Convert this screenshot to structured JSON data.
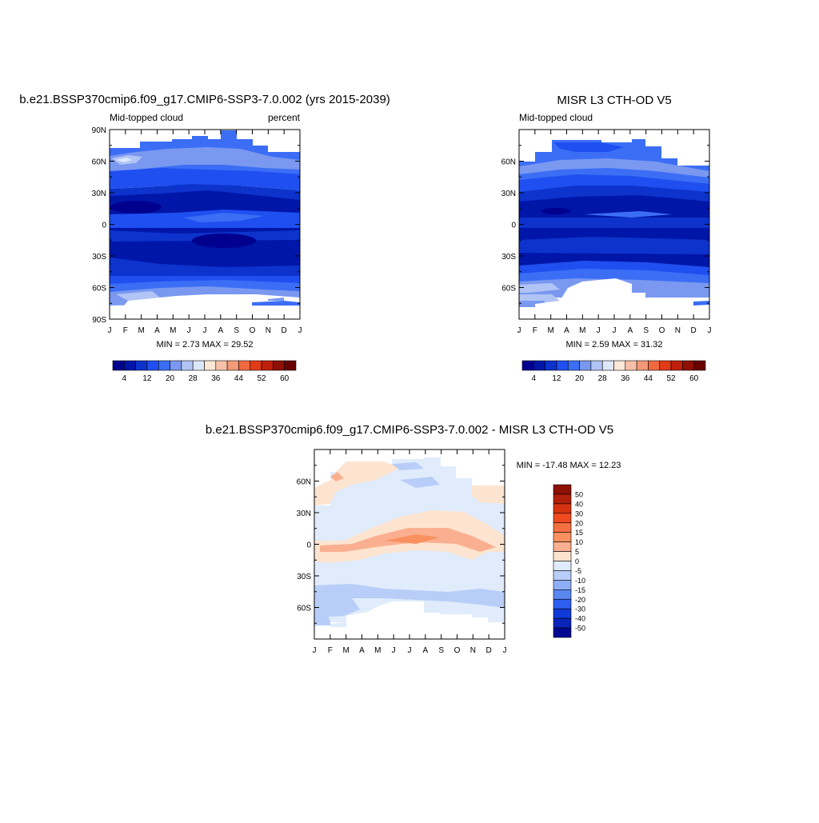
{
  "chart_data": [
    {
      "type": "heatmap",
      "title": "b.e21.BSSP370cmip6.f09_g17.CMIP6-SSP3-7.0.002 (yrs 2015-2039)",
      "subtitle_left": "Mid-topped cloud",
      "subtitle_right": "percent",
      "stats": "MIN =   2.73 MAX =  29.52",
      "x_ticks": [
        "J",
        "F",
        "M",
        "A",
        "M",
        "J",
        "J",
        "A",
        "S",
        "O",
        "N",
        "D",
        "J"
      ],
      "y_ticks": [
        "90N",
        "60N",
        "30N",
        "0",
        "30S",
        "60S",
        "90S"
      ],
      "y_tick_values": [
        90,
        60,
        30,
        0,
        -30,
        -60,
        -90
      ],
      "ylim": [
        -90,
        90
      ],
      "colorbar": {
        "orientation": "horizontal",
        "colors": [
          "#00008f",
          "#0016a8",
          "#0d33cc",
          "#1f4ff0",
          "#3b6ef5",
          "#7a98f0",
          "#b0c4f5",
          "#dce8fa",
          "#fde7d6",
          "#f8c0a8",
          "#f49a78",
          "#f06a40",
          "#e33a18",
          "#c01f0c",
          "#8f1005",
          "#6a0000"
        ],
        "tick_labels": [
          "4",
          "12",
          "20",
          "28",
          "36",
          "44",
          "52",
          "60"
        ]
      },
      "grid": false
    },
    {
      "type": "heatmap",
      "title": "MISR L3 CTH-OD V5",
      "subtitle_left": "Mid-topped cloud",
      "stats": "MIN =   2.59 MAX =  31.32",
      "x_ticks": [
        "J",
        "F",
        "M",
        "A",
        "M",
        "J",
        "J",
        "A",
        "S",
        "O",
        "N",
        "D",
        "J"
      ],
      "y_ticks": [
        "60N",
        "30N",
        "0",
        "30S",
        "60S"
      ],
      "y_tick_values": [
        60,
        30,
        0,
        -30,
        -60
      ],
      "ylim": [
        -90,
        90
      ],
      "colorbar": {
        "orientation": "horizontal",
        "colors": [
          "#00008f",
          "#0016a8",
          "#0d33cc",
          "#1f4ff0",
          "#3b6ef5",
          "#7a98f0",
          "#b0c4f5",
          "#dce8fa",
          "#fde7d6",
          "#f8c0a8",
          "#f49a78",
          "#f06a40",
          "#e33a18",
          "#c01f0c",
          "#8f1005",
          "#6a0000"
        ],
        "tick_labels": [
          "4",
          "12",
          "20",
          "28",
          "36",
          "44",
          "52",
          "60"
        ]
      },
      "grid": false
    },
    {
      "type": "heatmap",
      "title": "b.e21.BSSP370cmip6.f09_g17.CMIP6-SSP3-7.0.002 - MISR L3 CTH-OD V5",
      "stats": "MIN = -17.48 MAX =  12.23",
      "x_ticks": [
        "J",
        "F",
        "M",
        "A",
        "M",
        "J",
        "J",
        "A",
        "S",
        "O",
        "N",
        "D",
        "J"
      ],
      "y_ticks": [
        "60N",
        "30N",
        "0",
        "30S",
        "60S"
      ],
      "y_tick_values": [
        60,
        30,
        0,
        -30,
        -60
      ],
      "ylim": [
        -90,
        90
      ],
      "colorbar": {
        "orientation": "vertical",
        "colors": [
          "#8f1005",
          "#b0200a",
          "#d43210",
          "#f04a20",
          "#f57040",
          "#f89060",
          "#fab090",
          "#fde4d0",
          "#e0ecfc",
          "#b8cdf8",
          "#8fadf5",
          "#5a86f0",
          "#2e5ef0",
          "#0f3ad8",
          "#0a24b8",
          "#000a90"
        ],
        "tick_labels": [
          "50",
          "40",
          "30",
          "20",
          "15",
          "10",
          "5",
          "0",
          "-5",
          "-10",
          "-15",
          "-20",
          "-30",
          "-40",
          "-50"
        ]
      },
      "grid": false
    }
  ]
}
